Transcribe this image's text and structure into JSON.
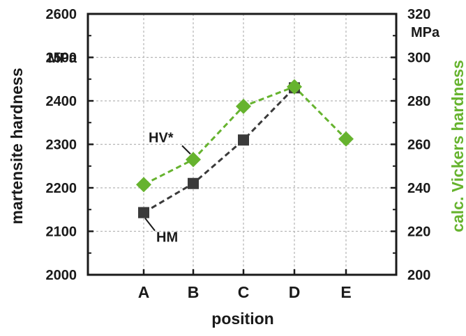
{
  "chart_data": {
    "type": "line",
    "categories": [
      "A",
      "B",
      "C",
      "D",
      "E"
    ],
    "xlabel": "position",
    "ylabel_left": "martensite hardness",
    "ylabel_left_unit": "MPa",
    "ylabel_right": "calc. Vickers hardness",
    "ylabel_right_unit": "MPa",
    "ylim_left": [
      2000,
      2600
    ],
    "ylim_right": [
      200,
      320
    ],
    "yticks_left": [
      "2000",
      "2100",
      "2200",
      "2300",
      "2400",
      "2500",
      "2600"
    ],
    "yticks_right": [
      "200",
      "220",
      "240",
      "260",
      "280",
      "300",
      "320"
    ],
    "grid": true,
    "series": [
      {
        "name": "HM",
        "axis": "left",
        "color": "#3a3a3a",
        "marker": "square",
        "values": [
          2143,
          2210,
          2310,
          2430,
          null
        ]
      },
      {
        "name": "HV*",
        "axis": "right",
        "color": "#66b32e",
        "marker": "diamond",
        "values": [
          241.5,
          253,
          277.5,
          286.5,
          262.5
        ]
      }
    ]
  }
}
